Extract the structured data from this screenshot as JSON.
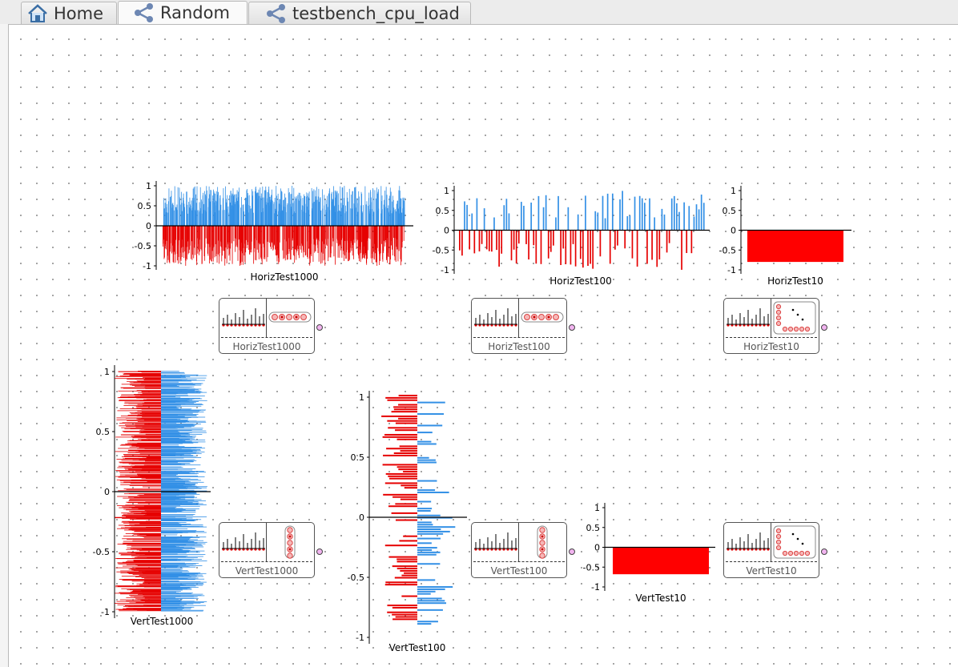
{
  "tabs": [
    {
      "label": "Home",
      "icon": "home-icon",
      "active": false
    },
    {
      "label": "Random",
      "icon": "graph-icon",
      "active": true
    },
    {
      "label": "testbench_cpu_load",
      "icon": "graph-icon",
      "active": false
    }
  ],
  "colors": {
    "positive": "#3390e6",
    "negative": "#e60000",
    "negative_bar": "#ff0000",
    "port": "#f2b4f0"
  },
  "blocks": [
    {
      "id": "horiz1000",
      "label": "HorizTest1000",
      "kind": "horizontal"
    },
    {
      "id": "horiz100",
      "label": "HorizTest100",
      "kind": "horizontal"
    },
    {
      "id": "horiz10",
      "label": "HorizTest10",
      "kind": "xy"
    },
    {
      "id": "vert1000",
      "label": "VertTest1000",
      "kind": "vertical"
    },
    {
      "id": "vert100",
      "label": "VertTest100",
      "kind": "vertical"
    },
    {
      "id": "vert10",
      "label": "VertTest10",
      "kind": "xy"
    }
  ],
  "chart_data": [
    {
      "id": "HorizTest1000",
      "type": "bar",
      "orientation": "vertical",
      "count": 1000,
      "title": "HorizTest1000",
      "ylim": [
        -1,
        1
      ],
      "ticks": [
        "1",
        "0.5",
        "0",
        "-0.5",
        "-1"
      ],
      "values": "random in [-1, 1]"
    },
    {
      "id": "HorizTest100",
      "type": "bar",
      "orientation": "vertical",
      "count": 100,
      "title": "HorizTest100",
      "ylim": [
        -1,
        1
      ],
      "ticks": [
        "1",
        "0.5",
        "0",
        "-0.5",
        "-1"
      ],
      "values": "random in [-1, 1]"
    },
    {
      "id": "HorizTest10",
      "type": "bar",
      "orientation": "vertical",
      "count": 1,
      "title": "HorizTest10",
      "ylim": [
        -1,
        1
      ],
      "ticks": [
        "1",
        "0.5",
        "0",
        "-0.5",
        "-1"
      ],
      "values": [
        -0.8
      ]
    },
    {
      "id": "VertTest1000",
      "type": "bar",
      "orientation": "horizontal",
      "count": 1000,
      "title": "VertTest1000",
      "ylim": [
        -1,
        1
      ],
      "ticks": [
        "1",
        "0.5",
        "0",
        "-0.5",
        "-1"
      ],
      "values": "random in [-1, 1]"
    },
    {
      "id": "VertTest100",
      "type": "bar",
      "orientation": "horizontal",
      "count": 100,
      "title": "VertTest100",
      "ylim": [
        -1,
        1
      ],
      "ticks": [
        "1",
        "0.5",
        "0",
        "-0.5",
        "-1"
      ],
      "values": "random in [-1, 1]"
    },
    {
      "id": "VertTest10",
      "type": "bar",
      "orientation": "vertical",
      "count": 1,
      "title": "VertTest10",
      "ylim": [
        -1,
        1
      ],
      "ticks": [
        "1",
        "0.5",
        "0",
        "-0.5",
        "-1"
      ],
      "values": [
        -0.68
      ]
    }
  ]
}
